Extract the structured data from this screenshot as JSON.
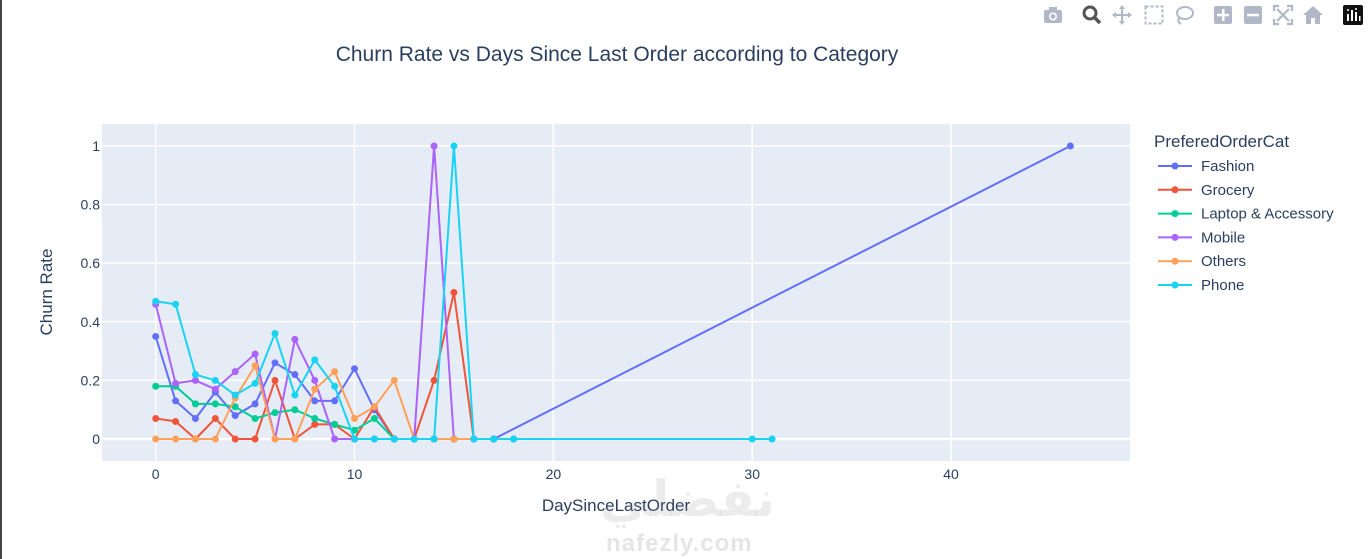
{
  "chart_data": {
    "type": "line",
    "title": "Churn Rate vs Days Since Last Order according to Category",
    "xlabel": "DaySinceLastOrder",
    "ylabel": "Churn Rate",
    "xlim": [
      -2.7,
      49
    ],
    "ylim": [
      -0.075,
      1.075
    ],
    "xticks": [
      0,
      10,
      20,
      30,
      40
    ],
    "yticks": [
      0,
      0.2,
      0.4,
      0.6,
      0.8,
      1
    ],
    "ytick_labels": [
      "0",
      "0.2",
      "0.4",
      "0.6",
      "0.8",
      "1"
    ],
    "grid": true,
    "legend_title": "PreferedOrderCat",
    "legend_position": "right",
    "series": [
      {
        "name": "Fashion",
        "color": "#636efa",
        "x": [
          0,
          1,
          2,
          3,
          4,
          5,
          6,
          7,
          8,
          9,
          10,
          11,
          12,
          13,
          14,
          15,
          16,
          17,
          46
        ],
        "y": [
          0.35,
          0.13,
          0.07,
          0.16,
          0.08,
          0.12,
          0.26,
          0.22,
          0.13,
          0.13,
          0.24,
          0.1,
          0,
          0,
          0,
          0,
          0,
          0,
          1
        ]
      },
      {
        "name": "Grocery",
        "color": "#ef553b",
        "x": [
          0,
          1,
          2,
          3,
          4,
          5,
          6,
          7,
          8,
          9,
          10,
          11,
          12,
          13,
          14,
          15,
          16,
          17
        ],
        "y": [
          0.07,
          0.06,
          0,
          0.07,
          0,
          0,
          0.2,
          0,
          0.05,
          0.05,
          0,
          0.11,
          0,
          0,
          0.2,
          0.5,
          0,
          0
        ]
      },
      {
        "name": "Laptop & Accessory",
        "color": "#00cc96",
        "x": [
          0,
          1,
          2,
          3,
          4,
          5,
          6,
          7,
          8,
          9,
          10,
          11,
          12,
          13,
          14,
          15,
          16,
          17,
          18
        ],
        "y": [
          0.18,
          0.18,
          0.12,
          0.12,
          0.11,
          0.07,
          0.09,
          0.1,
          0.07,
          0.05,
          0.03,
          0.07,
          0,
          0,
          0,
          0,
          0,
          0,
          0
        ]
      },
      {
        "name": "Mobile",
        "color": "#ab63fa",
        "x": [
          0,
          1,
          2,
          3,
          4,
          5,
          6,
          7,
          8,
          9,
          10,
          11,
          12,
          13,
          14,
          15,
          16,
          17
        ],
        "y": [
          0.46,
          0.19,
          0.2,
          0.17,
          0.23,
          0.29,
          0,
          0.34,
          0.2,
          0,
          0,
          0,
          0,
          0,
          1,
          0,
          0,
          0
        ]
      },
      {
        "name": "Others",
        "color": "#ffa15a",
        "x": [
          0,
          1,
          2,
          3,
          4,
          5,
          6,
          7,
          8,
          9,
          10,
          11,
          12,
          13,
          14,
          15,
          16
        ],
        "y": [
          0,
          0,
          0,
          0,
          0.14,
          0.25,
          0,
          0,
          0.17,
          0.23,
          0.07,
          0.11,
          0.2,
          0,
          0,
          0,
          0
        ]
      },
      {
        "name": "Phone",
        "color": "#19d3f3",
        "x": [
          0,
          1,
          2,
          3,
          4,
          5,
          6,
          7,
          8,
          9,
          10,
          11,
          12,
          13,
          14,
          15,
          16,
          17,
          18,
          30,
          31
        ],
        "y": [
          0.47,
          0.46,
          0.22,
          0.2,
          0.15,
          0.19,
          0.36,
          0.15,
          0.27,
          0.18,
          0,
          0,
          0,
          0,
          0,
          1,
          0,
          0,
          0,
          0,
          0
        ]
      }
    ]
  },
  "toolbar": {
    "icons": [
      "camera-icon",
      "zoom-icon",
      "pan-icon",
      "box-select-icon",
      "lasso-icon",
      "zoom-in-icon",
      "zoom-out-icon",
      "autoscale-icon",
      "reset-axes-icon",
      "plotly-logo-icon"
    ]
  },
  "watermark": {
    "arabic": "نفضلي",
    "latin": "nafezly.com"
  }
}
